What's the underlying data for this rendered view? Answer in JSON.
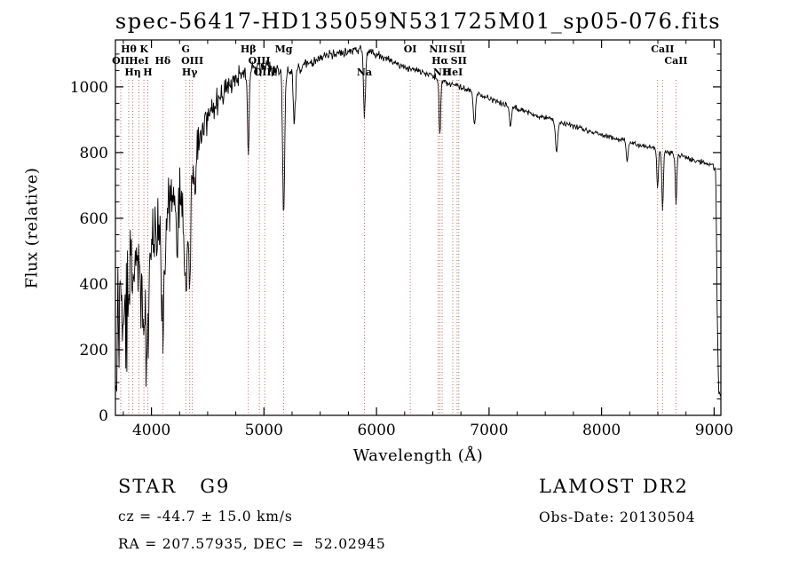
{
  "title": "spec-56417-HD135059N531725M01_sp05-076.fits",
  "axes": {
    "xlabel": "Wavelength (Å)",
    "ylabel": "Flux (relative)",
    "x_ticks": [
      4000,
      5000,
      6000,
      7000,
      8000,
      9000
    ],
    "y_ticks": [
      0,
      200,
      400,
      600,
      800,
      1000
    ]
  },
  "footer": {
    "star": "STAR   G9",
    "survey": "LAMOST DR2",
    "cz": "cz = -44.7 ± 15.0 km/s",
    "obs_date": "Obs-Date: 20130504",
    "coords": "RA = 207.57935, DEC =  52.02945"
  },
  "styles": {
    "marker_color": "#aa5555",
    "spectrum_color": "#000000",
    "axis_color": "#000000",
    "label_color": "#111111"
  },
  "spectral_lines": [
    {
      "label": "OII",
      "wl": 3727,
      "row": 2
    },
    {
      "label": "Hθ",
      "wl": 3798,
      "row": 1
    },
    {
      "label": "Hη",
      "wl": 3835,
      "row": 3
    },
    {
      "label": "HeI",
      "wl": 3889,
      "row": 2
    },
    {
      "label": "K",
      "wl": 3933,
      "row": 1
    },
    {
      "label": "H",
      "wl": 3968,
      "row": 3
    },
    {
      "label": "Hδ",
      "wl": 4101,
      "row": 2
    },
    {
      "label": "G",
      "wl": 4305,
      "row": 1
    },
    {
      "label": "Hγ",
      "wl": 4340,
      "row": 3
    },
    {
      "label": "OIII",
      "wl": 4363,
      "row": 2
    },
    {
      "label": "Hβ",
      "wl": 4861,
      "row": 1
    },
    {
      "label": "OIII",
      "wl": 4959,
      "row": 2
    },
    {
      "label": "OIII",
      "wl": 5007,
      "row": 3
    },
    {
      "label": "Mg",
      "wl": 5175,
      "row": 1
    },
    {
      "label": "Na",
      "wl": 5893,
      "row": 3
    },
    {
      "label": "OI",
      "wl": 6300,
      "row": 1
    },
    {
      "label": "NII",
      "wl": 6548,
      "row": 1
    },
    {
      "label": "Hα",
      "wl": 6563,
      "row": 2
    },
    {
      "label": "NII",
      "wl": 6583,
      "row": 3
    },
    {
      "label": "HeI",
      "wl": 6678,
      "row": 3
    },
    {
      "label": "SII",
      "wl": 6716,
      "row": 1
    },
    {
      "label": "SII",
      "wl": 6731,
      "row": 2
    },
    {
      "label": "",
      "wl": 8498,
      "row": 0
    },
    {
      "label": "CaII",
      "wl": 8542,
      "row": 1
    },
    {
      "label": "CaII",
      "wl": 8662,
      "row": 2
    }
  ],
  "chart_data": {
    "type": "line",
    "series_name": "spectrum",
    "title": "spec-56417-HD135059N531725M01_sp05-076.fits",
    "xlabel": "Wavelength (Å)",
    "ylabel": "Flux (relative)",
    "xlim": [
      3680,
      9060
    ],
    "ylim": [
      0,
      1143
    ],
    "sample_step": 5,
    "seed": 1337,
    "envelope": [
      [
        3680,
        60
      ],
      [
        3695,
        200
      ],
      [
        3705,
        330
      ],
      [
        3715,
        280
      ],
      [
        3725,
        390
      ],
      [
        3740,
        340
      ],
      [
        3760,
        300
      ],
      [
        3775,
        430
      ],
      [
        3790,
        380
      ],
      [
        3810,
        450
      ],
      [
        3830,
        400
      ],
      [
        3850,
        460
      ],
      [
        3870,
        430
      ],
      [
        3890,
        470
      ],
      [
        3910,
        440
      ],
      [
        3930,
        470
      ],
      [
        3950,
        450
      ],
      [
        3970,
        480
      ],
      [
        3990,
        520
      ],
      [
        4010,
        540
      ],
      [
        4030,
        520
      ],
      [
        4060,
        570
      ],
      [
        4090,
        560
      ],
      [
        4120,
        600
      ],
      [
        4150,
        630
      ],
      [
        4180,
        660
      ],
      [
        4210,
        690
      ],
      [
        4240,
        710
      ],
      [
        4270,
        700
      ],
      [
        4300,
        710
      ],
      [
        4330,
        760
      ],
      [
        4360,
        800
      ],
      [
        4390,
        830
      ],
      [
        4420,
        860
      ],
      [
        4450,
        880
      ],
      [
        4480,
        890
      ],
      [
        4520,
        920
      ],
      [
        4560,
        940
      ],
      [
        4600,
        960
      ],
      [
        4650,
        985
      ],
      [
        4700,
        1005
      ],
      [
        4760,
        1025
      ],
      [
        4820,
        1040
      ],
      [
        4880,
        1055
      ],
      [
        4940,
        1060
      ],
      [
        5000,
        1060
      ],
      [
        5060,
        1055
      ],
      [
        5120,
        1050
      ],
      [
        5180,
        1050
      ],
      [
        5240,
        1050
      ],
      [
        5300,
        1060
      ],
      [
        5360,
        1068
      ],
      [
        5420,
        1075
      ],
      [
        5480,
        1085
      ],
      [
        5540,
        1092
      ],
      [
        5600,
        1098
      ],
      [
        5660,
        1102
      ],
      [
        5720,
        1105
      ],
      [
        5780,
        1112
      ],
      [
        5840,
        1115
      ],
      [
        5900,
        1108
      ],
      [
        5960,
        1102
      ],
      [
        6020,
        1098
      ],
      [
        6080,
        1088
      ],
      [
        6140,
        1078
      ],
      [
        6200,
        1068
      ],
      [
        6260,
        1060
      ],
      [
        6320,
        1052
      ],
      [
        6380,
        1046
      ],
      [
        6440,
        1040
      ],
      [
        6500,
        1032
      ],
      [
        6560,
        1022
      ],
      [
        6620,
        1014
      ],
      [
        6680,
        1008
      ],
      [
        6740,
        1000
      ],
      [
        6800,
        994
      ],
      [
        6900,
        980
      ],
      [
        7000,
        965
      ],
      [
        7100,
        952
      ],
      [
        7200,
        940
      ],
      [
        7300,
        928
      ],
      [
        7400,
        916
      ],
      [
        7500,
        906
      ],
      [
        7600,
        896
      ],
      [
        7700,
        886
      ],
      [
        7800,
        876
      ],
      [
        7900,
        864
      ],
      [
        8000,
        854
      ],
      [
        8100,
        844
      ],
      [
        8200,
        836
      ],
      [
        8300,
        826
      ],
      [
        8400,
        818
      ],
      [
        8500,
        810
      ],
      [
        8600,
        800
      ],
      [
        8700,
        790
      ],
      [
        8800,
        780
      ],
      [
        8880,
        772
      ],
      [
        8950,
        765
      ],
      [
        9000,
        758
      ],
      [
        9015,
        750
      ],
      [
        9028,
        300
      ],
      [
        9040,
        70
      ],
      [
        9060,
        60
      ]
    ],
    "noise_envelope": [
      [
        3680,
        190
      ],
      [
        3900,
        175
      ],
      [
        4100,
        165
      ],
      [
        4300,
        140
      ],
      [
        4450,
        95
      ],
      [
        4600,
        60
      ],
      [
        4800,
        45
      ],
      [
        5000,
        38
      ],
      [
        5200,
        32
      ],
      [
        5400,
        27
      ],
      [
        5600,
        24
      ],
      [
        5800,
        22
      ],
      [
        6000,
        19
      ],
      [
        6300,
        16
      ],
      [
        6600,
        15
      ],
      [
        7000,
        13
      ],
      [
        7500,
        12
      ],
      [
        8000,
        12
      ],
      [
        8500,
        13
      ],
      [
        9000,
        14
      ],
      [
        9060,
        10
      ]
    ],
    "noise_model": {
      "blue_spike_prob": 0.1,
      "blue_spike_max": 260,
      "blue_spike_cutoff": 4500
    },
    "absorption_features": [
      {
        "wl": 3933,
        "depth": 260,
        "width": 10
      },
      {
        "wl": 3968,
        "depth": 260,
        "width": 10
      },
      {
        "wl": 4101,
        "depth": 300,
        "width": 12
      },
      {
        "wl": 4227,
        "depth": 180,
        "width": 8
      },
      {
        "wl": 4305,
        "depth": 320,
        "width": 14
      },
      {
        "wl": 4340,
        "depth": 300,
        "width": 10
      },
      {
        "wl": 4383,
        "depth": 170,
        "width": 9
      },
      {
        "wl": 4861,
        "depth": 250,
        "width": 8
      },
      {
        "wl": 5175,
        "depth": 440,
        "width": 9
      },
      {
        "wl": 5270,
        "depth": 160,
        "width": 10
      },
      {
        "wl": 5893,
        "depth": 210,
        "width": 8
      },
      {
        "wl": 6563,
        "depth": 170,
        "width": 7
      },
      {
        "wl": 6870,
        "depth": 100,
        "width": 9
      },
      {
        "wl": 7190,
        "depth": 60,
        "width": 10
      },
      {
        "wl": 7600,
        "depth": 90,
        "width": 11
      },
      {
        "wl": 8227,
        "depth": 60,
        "width": 8
      },
      {
        "wl": 8498,
        "depth": 120,
        "width": 7
      },
      {
        "wl": 8542,
        "depth": 180,
        "width": 7
      },
      {
        "wl": 8662,
        "depth": 150,
        "width": 7
      }
    ]
  }
}
